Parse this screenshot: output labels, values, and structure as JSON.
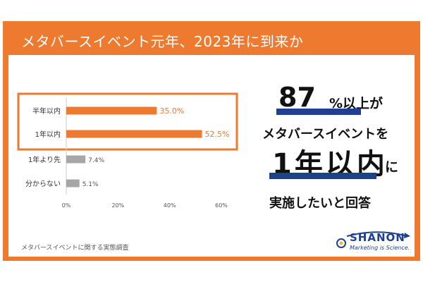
{
  "header": {
    "title": "メタバースイベント元年、2023年に到来か"
  },
  "headline": {
    "big_percent": "87",
    "percent_sign_suffix": "%以上が",
    "middle": "メタバースイベントを",
    "big_period": "1年以内",
    "big_period_suffix": "に",
    "bottom": "実施したいと回答"
  },
  "source": "メタバースイベントに関する実態調査",
  "logo": {
    "name": "SHANON",
    "tagline": "Marketing is Science."
  },
  "colors": {
    "accent": "#ee7a2f",
    "gray_bar": "#a6a6a6",
    "navy": "#1f3f8f",
    "highlight_value": "#ee7a2f",
    "normal_value": "#555555"
  },
  "chart_data": {
    "type": "bar",
    "orientation": "horizontal",
    "categories": [
      "半年以内",
      "1年以内",
      "1年より先",
      "分からない"
    ],
    "values": [
      35.0,
      52.5,
      7.4,
      5.1
    ],
    "value_labels": [
      "35.0%",
      "52.5%",
      "7.4%",
      "5.1%"
    ],
    "highlighted": [
      true,
      true,
      false,
      false
    ],
    "xlim": [
      0,
      60
    ],
    "xticks": [
      0,
      20,
      40,
      60
    ],
    "xtick_labels": [
      "0%",
      "20%",
      "40%",
      "60%"
    ],
    "grid": false,
    "title": "",
    "xlabel": "",
    "ylabel": ""
  }
}
